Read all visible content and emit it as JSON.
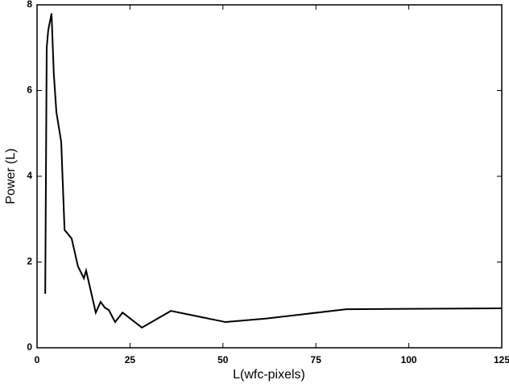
{
  "chart_data": {
    "type": "line",
    "x_label": "L(wfc-pixels)",
    "y_label": "Power (L)",
    "xlim": [
      0,
      125
    ],
    "ylim": [
      0,
      8
    ],
    "xticks": [
      0,
      25,
      50,
      75,
      100,
      125
    ],
    "yticks": [
      0,
      2,
      4,
      6,
      8
    ],
    "series": [
      {
        "color": "#000000",
        "x": [
          2.2,
          2.6,
          3.0,
          3.9,
          4.5,
          5.2,
          6.5,
          7.4,
          9.3,
          11.0,
          12.6,
          13.2,
          15.8,
          17.1,
          18.2,
          19.3,
          21.0,
          23.0,
          28.2,
          36.0,
          50.7,
          61.5,
          83.2,
          125
        ],
        "values": [
          1.26,
          7.0,
          7.4,
          7.8,
          6.4,
          5.5,
          4.8,
          2.75,
          2.55,
          1.9,
          1.62,
          1.8,
          0.82,
          1.07,
          0.94,
          0.88,
          0.6,
          0.82,
          0.47,
          0.86,
          0.6,
          0.68,
          0.9,
          0.92
        ]
      }
    ]
  }
}
